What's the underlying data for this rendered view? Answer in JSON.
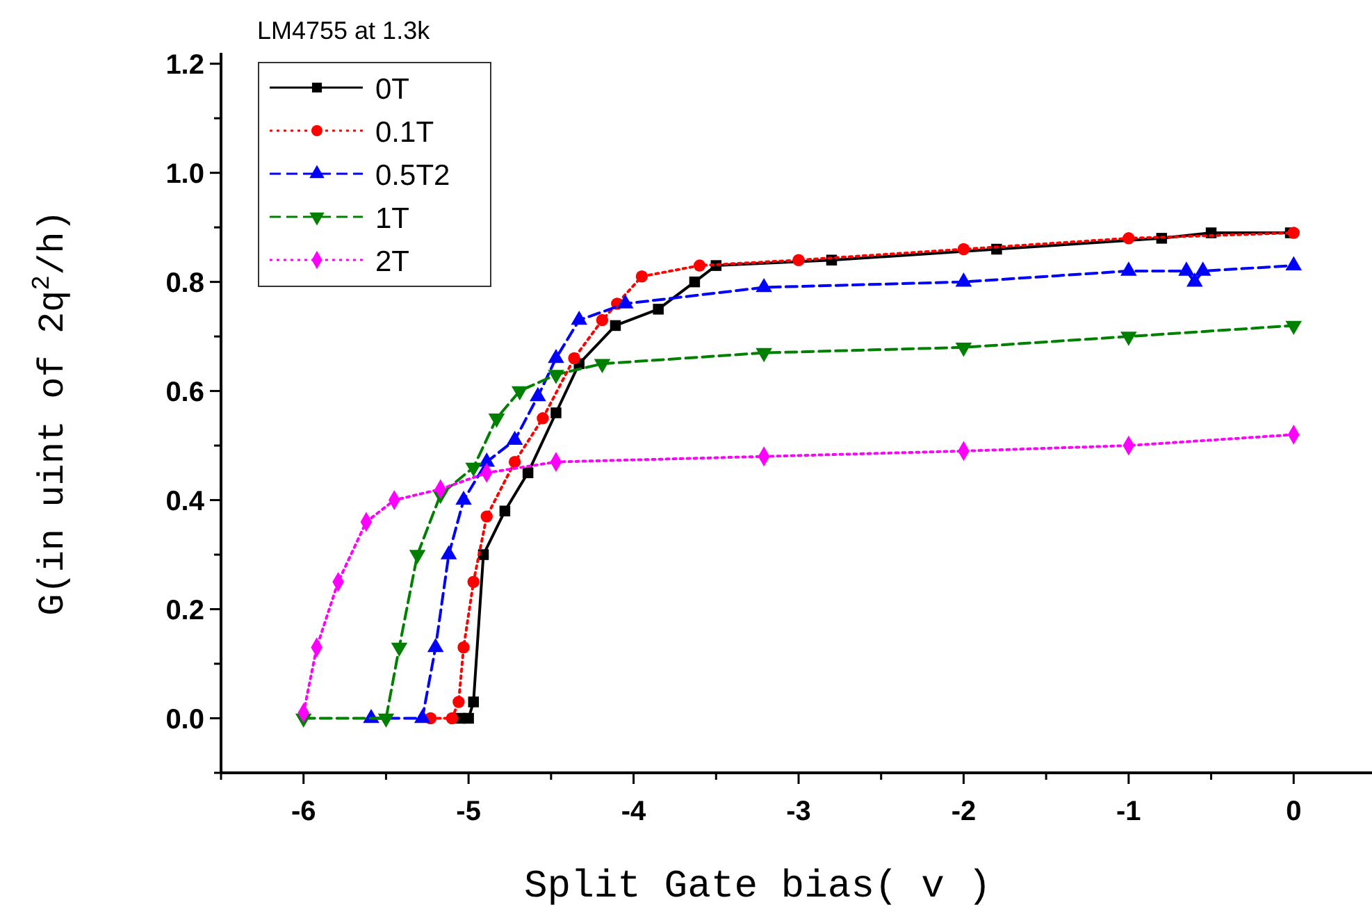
{
  "chart_data": {
    "type": "line",
    "title": "LM4755 at 1.3k",
    "xlabel": "Split Gate bias( v )",
    "ylabel": "G(in uint of 2q$^{2}$/h)",
    "xlim": [
      -6.5,
      0.5
    ],
    "ylim": [
      -0.1,
      1.22
    ],
    "xticks": [
      {
        "value": -6.5,
        "label": null
      },
      -6,
      {
        "value": -5.5,
        "label": null
      },
      -5,
      {
        "value": -4.5,
        "label": null
      },
      -4,
      {
        "value": -3.5,
        "label": null
      },
      -3,
      {
        "value": -2.5,
        "label": null
      },
      -2,
      {
        "value": -1.5,
        "label": null
      },
      -1,
      {
        "value": -0.5,
        "label": null
      },
      0,
      {
        "value": 0.5,
        "label": null
      }
    ],
    "yticks": [
      {
        "value": -0.1,
        "label": null
      },
      {
        "value": 0,
        "label": "0.0"
      },
      {
        "value": 0.1,
        "label": null
      },
      {
        "value": 0.2,
        "label": "0.2"
      },
      {
        "value": 0.3,
        "label": null
      },
      {
        "value": 0.4,
        "label": "0.4"
      },
      {
        "value": 0.5,
        "label": null
      },
      {
        "value": 0.6,
        "label": "0.6"
      },
      {
        "value": 0.7,
        "label": null
      },
      {
        "value": 0.8,
        "label": "0.8"
      },
      {
        "value": 0.9,
        "label": null
      },
      {
        "value": 1.0,
        "label": "1.0"
      },
      {
        "value": 1.1,
        "label": null
      },
      {
        "value": 1.2,
        "label": "1.2"
      }
    ],
    "grid": false,
    "legend": "top left",
    "series": [
      {
        "name": "0T",
        "color": "#000000",
        "marker": "square",
        "line_style": "solid",
        "x": [
          -5.05,
          -5.0,
          -4.97,
          -4.91,
          -4.78,
          -4.64,
          -4.47,
          -4.33,
          -4.11,
          -3.85,
          -3.63,
          -3.5,
          -2.8,
          -1.8,
          -0.8,
          -0.5,
          -0.02
        ],
        "values": [
          0,
          0,
          0.03,
          0.3,
          0.38,
          0.45,
          0.56,
          0.65,
          0.72,
          0.75,
          0.8,
          0.83,
          0.84,
          0.86,
          0.88,
          0.89,
          0.89
        ]
      },
      {
        "name": "0.1T",
        "color": "#ff0000",
        "marker": "circle",
        "line_style": "dotted",
        "x": [
          -5.23,
          -5.1,
          -5.06,
          -5.03,
          -4.97,
          -4.89,
          -4.72,
          -4.55,
          -4.36,
          -4.19,
          -4.1,
          -3.95,
          -3.6,
          -3.0,
          -2.0,
          -1.0,
          0
        ],
        "values": [
          0,
          0,
          0.03,
          0.13,
          0.25,
          0.37,
          0.47,
          0.55,
          0.66,
          0.73,
          0.76,
          0.81,
          0.83,
          0.84,
          0.86,
          0.88,
          0.89
        ]
      },
      {
        "name": "0.5T2",
        "color": "#0000ff",
        "marker": "triangle",
        "line_style": "dashed",
        "x": [
          -5.59,
          -5.28,
          -5.2,
          -5.12,
          -5.03,
          -4.89,
          -4.72,
          -4.58,
          -4.47,
          -4.33,
          -4.05,
          -3.21,
          -2.0,
          -1.0,
          -0.65,
          -0.6,
          -0.55,
          0
        ],
        "values": [
          0,
          0,
          0.13,
          0.3,
          0.4,
          0.47,
          0.51,
          0.59,
          0.66,
          0.73,
          0.76,
          0.79,
          0.8,
          0.82,
          0.82,
          0.8,
          0.82,
          0.83
        ]
      },
      {
        "name": "1T",
        "color": "#008000",
        "marker": "triangle-down",
        "line_style": "dashed",
        "x": [
          -6.0,
          -5.5,
          -5.42,
          -5.31,
          -5.17,
          -4.97,
          -4.83,
          -4.69,
          -4.47,
          -4.19,
          -3.21,
          -2.0,
          -1.0,
          0
        ],
        "values": [
          0,
          0,
          0.13,
          0.3,
          0.41,
          0.46,
          0.55,
          0.6,
          0.63,
          0.65,
          0.67,
          0.68,
          0.7,
          0.72
        ]
      },
      {
        "name": "2T",
        "color": "#ff00ff",
        "marker": "diamond",
        "line_style": "dotted",
        "x": [
          -6.0,
          -5.92,
          -5.79,
          -5.62,
          -5.45,
          -5.17,
          -4.89,
          -4.47,
          -3.21,
          -2.0,
          -1.0,
          0
        ],
        "values": [
          0.01,
          0.13,
          0.25,
          0.36,
          0.4,
          0.42,
          0.45,
          0.47,
          0.48,
          0.49,
          0.5,
          0.52
        ]
      }
    ]
  }
}
